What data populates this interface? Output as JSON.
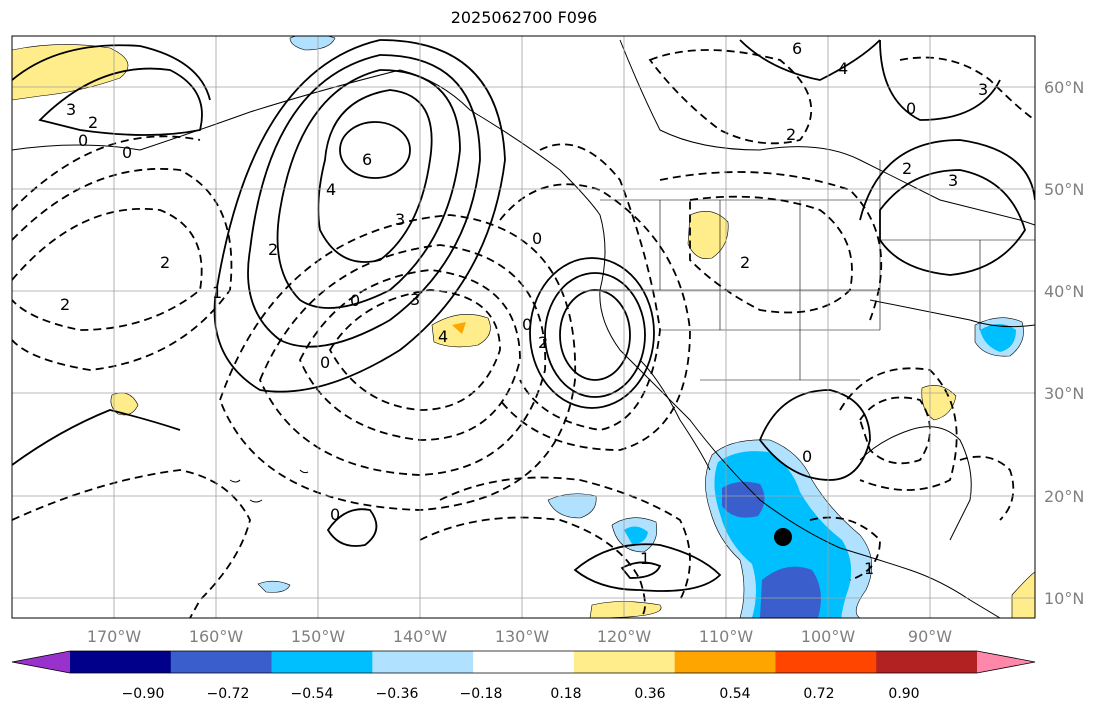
{
  "title": "2025062700 F096",
  "map": {
    "lon_labels": [
      "170°W",
      "160°W",
      "150°W",
      "140°W",
      "130°W",
      "120°W",
      "110°W",
      "100°W",
      "90°W"
    ],
    "lat_labels": [
      "60°N",
      "50°N",
      "40°N",
      "30°N",
      "20°N",
      "10°N"
    ],
    "contour_labels": [
      "3",
      "2",
      "0",
      "0",
      "6",
      "4",
      "3",
      "2",
      "2",
      "1",
      "0",
      "2",
      "3",
      "4",
      "0",
      "0",
      "2",
      "0",
      "0",
      "1",
      "6",
      "4",
      "2",
      "2",
      "3",
      "3",
      "0",
      "2",
      "0",
      "1"
    ],
    "marker": "storm-center"
  },
  "colorbar": {
    "ticks": [
      "−0.90",
      "−0.72",
      "−0.54",
      "−0.36",
      "−0.18",
      "0.18",
      "0.36",
      "0.54",
      "0.72",
      "0.90"
    ],
    "colors": [
      "#9932cc",
      "#00008b",
      "#3a5fcd",
      "#00bfff",
      "#b0e2ff",
      "#ffffff",
      "#ffec8b",
      "#ffa500",
      "#ff4500",
      "#b22222",
      "#ff88aa"
    ]
  }
}
